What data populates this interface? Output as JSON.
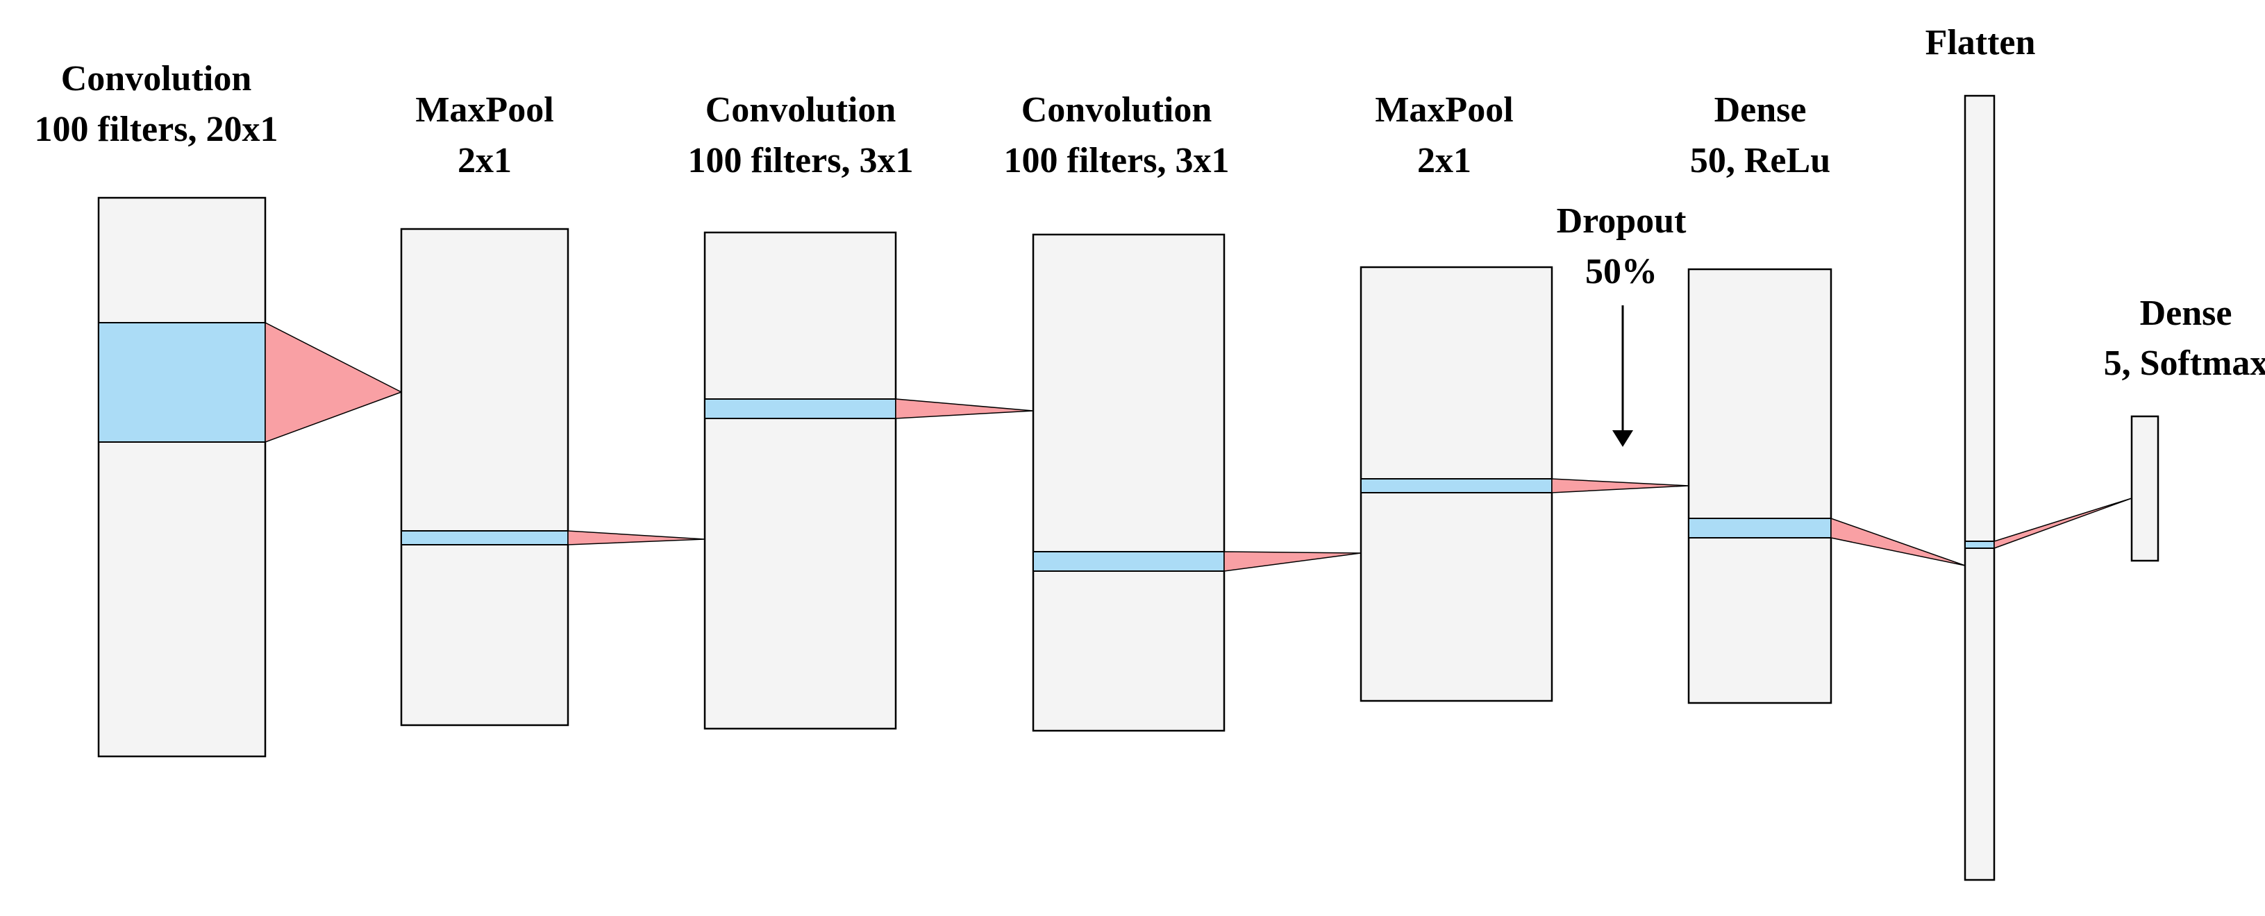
{
  "layers": [
    {
      "title": "Convolution",
      "subtitle": "100 filters, 20x1"
    },
    {
      "title": "MaxPool",
      "subtitle": "2x1"
    },
    {
      "title": "Convolution",
      "subtitle": "100 filters, 3x1"
    },
    {
      "title": "Convolution",
      "subtitle": "100 filters, 3x1"
    },
    {
      "title": "MaxPool",
      "subtitle": "2x1"
    },
    {
      "title": "Dense",
      "subtitle": "50, ReLu"
    },
    {
      "title": "Flatten",
      "subtitle": ""
    },
    {
      "title": "Dense",
      "subtitle": "5, Softmax"
    }
  ],
  "dropout": {
    "title": "Dropout",
    "subtitle": "50%"
  },
  "colors": {
    "block_fill": "#f4f4f4",
    "block_stroke": "#000000",
    "highlight_fill": "#abdcf6",
    "connector_fill": "#f9a0a4",
    "text": "#000000"
  }
}
